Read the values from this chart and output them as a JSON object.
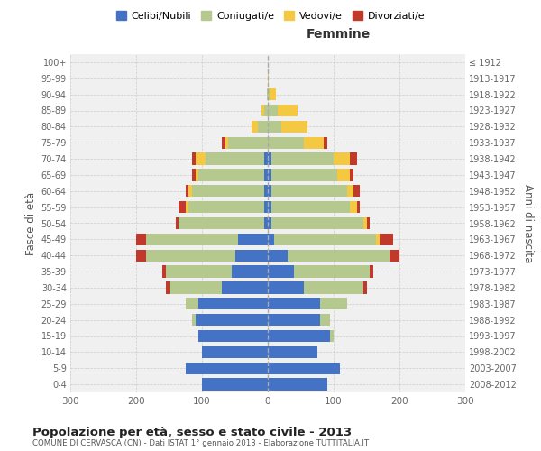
{
  "age_groups": [
    "0-4",
    "5-9",
    "10-14",
    "15-19",
    "20-24",
    "25-29",
    "30-34",
    "35-39",
    "40-44",
    "45-49",
    "50-54",
    "55-59",
    "60-64",
    "65-69",
    "70-74",
    "75-79",
    "80-84",
    "85-89",
    "90-94",
    "95-99",
    "100+"
  ],
  "birth_years": [
    "2008-2012",
    "2003-2007",
    "1998-2002",
    "1993-1997",
    "1988-1992",
    "1983-1987",
    "1978-1982",
    "1973-1977",
    "1968-1972",
    "1963-1967",
    "1958-1962",
    "1953-1957",
    "1948-1952",
    "1943-1947",
    "1938-1942",
    "1933-1937",
    "1928-1932",
    "1923-1927",
    "1918-1922",
    "1913-1917",
    "≤ 1912"
  ],
  "male": {
    "celibi": [
      100,
      125,
      100,
      105,
      110,
      105,
      70,
      55,
      50,
      45,
      5,
      5,
      5,
      5,
      5,
      0,
      0,
      0,
      0,
      0,
      0
    ],
    "coniugati": [
      0,
      0,
      0,
      0,
      5,
      20,
      80,
      100,
      135,
      140,
      130,
      115,
      110,
      100,
      90,
      60,
      15,
      5,
      2,
      0,
      0
    ],
    "vedovi": [
      0,
      0,
      0,
      0,
      0,
      0,
      0,
      0,
      0,
      0,
      0,
      5,
      5,
      5,
      15,
      5,
      10,
      5,
      0,
      0,
      0
    ],
    "divorziati": [
      0,
      0,
      0,
      0,
      0,
      0,
      5,
      5,
      15,
      15,
      5,
      10,
      5,
      5,
      5,
      5,
      0,
      0,
      0,
      0,
      0
    ]
  },
  "female": {
    "nubili": [
      90,
      110,
      75,
      95,
      80,
      80,
      55,
      40,
      30,
      10,
      5,
      5,
      5,
      5,
      5,
      0,
      0,
      0,
      0,
      0,
      0
    ],
    "coniugate": [
      0,
      0,
      0,
      5,
      15,
      40,
      90,
      115,
      155,
      155,
      140,
      120,
      115,
      100,
      95,
      55,
      20,
      15,
      3,
      0,
      0
    ],
    "vedove": [
      0,
      0,
      0,
      0,
      0,
      0,
      0,
      0,
      0,
      5,
      5,
      10,
      10,
      20,
      25,
      30,
      40,
      30,
      10,
      2,
      0
    ],
    "divorziate": [
      0,
      0,
      0,
      0,
      0,
      0,
      5,
      5,
      15,
      20,
      5,
      5,
      10,
      5,
      10,
      5,
      0,
      0,
      0,
      0,
      0
    ]
  },
  "colors": {
    "celibi": "#4472c4",
    "coniugati": "#b5c98e",
    "vedovi": "#f5c842",
    "divorziati": "#c0392b"
  },
  "xlim": 300,
  "title": "Popolazione per età, sesso e stato civile - 2013",
  "subtitle": "COMUNE DI CERVASCA (CN) - Dati ISTAT 1° gennaio 2013 - Elaborazione TUTTITALIA.IT",
  "ylabel_left": "Fasce di età",
  "ylabel_right": "Anni di nascita",
  "xlabel_right": "Femmine",
  "legend_labels": [
    "Celibi/Nubili",
    "Coniugati/e",
    "Vedovi/e",
    "Divorziati/e"
  ],
  "bg_color": "#ffffff",
  "plot_bg": "#f0f0f0",
  "grid_color": "#cccccc"
}
